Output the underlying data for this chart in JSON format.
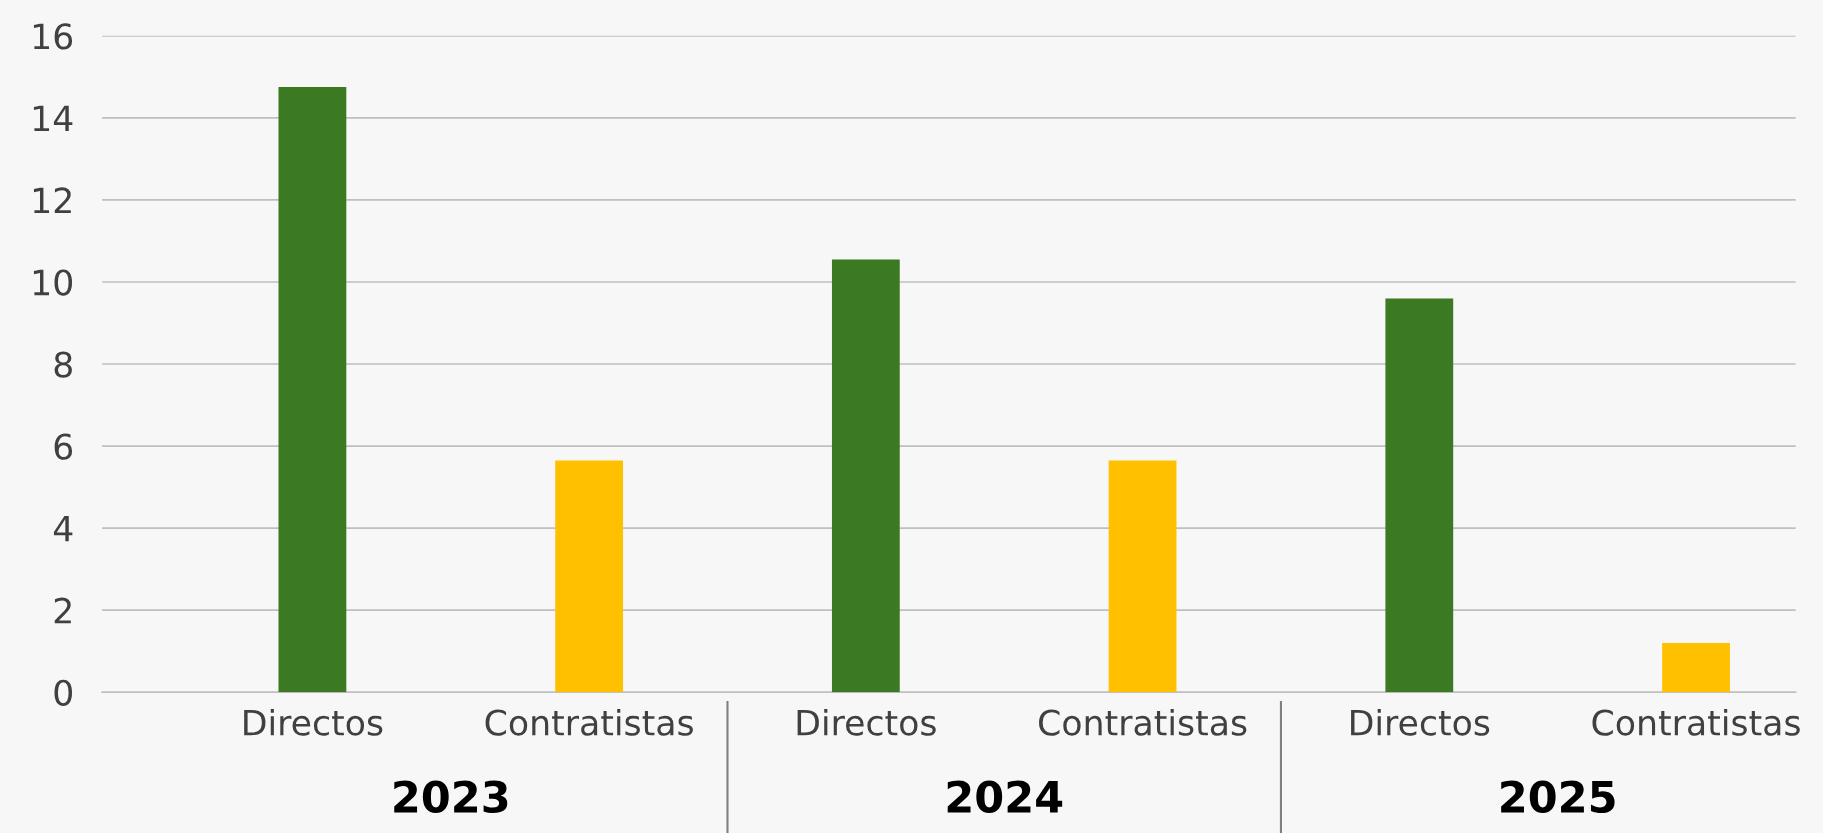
{
  "chart_data": {
    "type": "bar",
    "categories": [
      "Directos",
      "Contratistas",
      "Directos",
      "Contratistas",
      "Directos",
      "Contratistas"
    ],
    "values": [
      14.75,
      5.65,
      10.55,
      5.65,
      9.6,
      1.2
    ],
    "colors": [
      "#3b7a23",
      "#ffc000",
      "#3b7a23",
      "#ffc000",
      "#3b7a23",
      "#ffc000"
    ],
    "ylim": [
      0,
      16
    ],
    "yticks": [
      0,
      2,
      4,
      6,
      8,
      10,
      12,
      14,
      16
    ],
    "grid": "y",
    "legend": false,
    "annotations": [
      "2023",
      "2024",
      "2025"
    ]
  }
}
